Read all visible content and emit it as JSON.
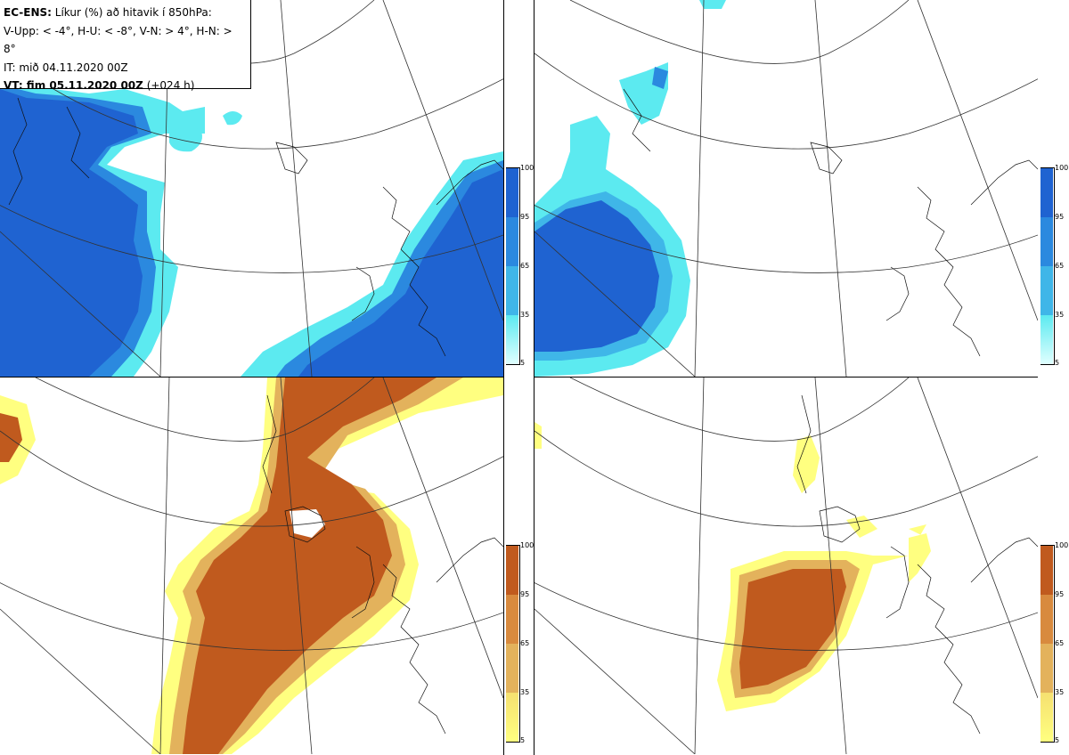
{
  "header": {
    "line1_bold": "EC-ENS:",
    "line1_rest": " Líkur (%) að hitavik í 850hPa:",
    "line2": "V-Upp: < -4°, H-U: < -8°, V-N: > 4°, H-N: > 8°",
    "line3": "IT: mið 04.11.2020 00Z",
    "line4_bold": "VT: fim 05.11.2020 00Z",
    "line4_rest": " (+024 h)"
  },
  "colors": {
    "cold": [
      "#e0ffff",
      "#5ceaf0",
      "#3fb6e8",
      "#2b89df",
      "#1f63d1"
    ],
    "warm": [
      "#ffff80",
      "#f5e070",
      "#e3b25c",
      "#d88a3e",
      "#c05a1e"
    ]
  },
  "legend_cold": {
    "ticks": [
      "100",
      "95",
      "65",
      "35",
      "5"
    ]
  },
  "legend_warm": {
    "ticks": [
      "100",
      "95",
      "65",
      "35",
      "5"
    ]
  }
}
